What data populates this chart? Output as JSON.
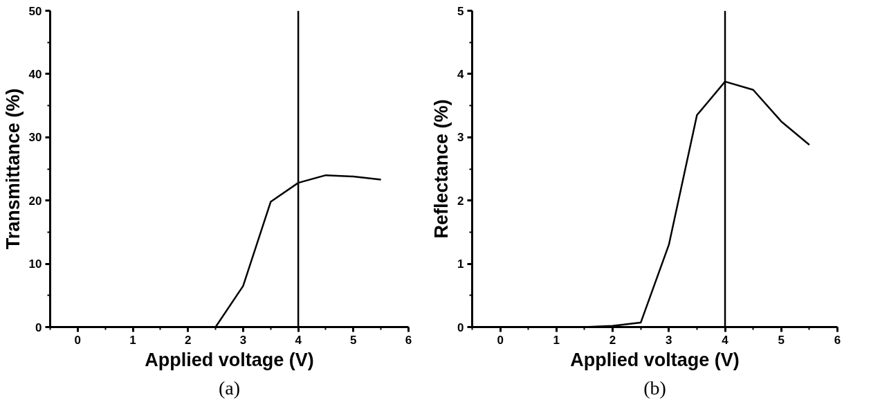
{
  "chart_data": [
    {
      "type": "line",
      "title": "(a)",
      "xlabel": "Applied voltage (V)",
      "ylabel": "Transmittance (%)",
      "x": [
        0,
        0.5,
        1,
        1.5,
        2,
        2.5,
        3,
        3.5,
        4,
        4.5,
        5,
        5.5
      ],
      "series": [
        {
          "color": "#000000",
          "values": [
            0,
            0,
            0,
            0,
            0,
            0,
            6.5,
            19.8,
            22.8,
            24,
            23.8,
            23.3
          ]
        }
      ],
      "xlim": [
        -0.5,
        6
      ],
      "ylim": [
        0,
        50
      ],
      "xticks": [
        0,
        1,
        2,
        3,
        4,
        5,
        6
      ],
      "yticks": [
        0,
        10,
        20,
        30,
        40,
        50
      ],
      "ref_lines": [
        {
          "axis": "x",
          "value": 4,
          "color": "#000000"
        }
      ],
      "grid": false,
      "marker": "none",
      "line_style": "solid"
    },
    {
      "type": "line",
      "title": "(b)",
      "xlabel": "Applied voltage (V)",
      "ylabel": "Reflectance (%)",
      "x": [
        0,
        0.5,
        1,
        1.5,
        2,
        2.5,
        3,
        3.5,
        4,
        4.5,
        5,
        5.5
      ],
      "series": [
        {
          "color": "#000000",
          "values": [
            0,
            0,
            0,
            0,
            0.02,
            0.07,
            1.3,
            3.35,
            3.88,
            3.75,
            3.25,
            2.88
          ]
        }
      ],
      "xlim": [
        -0.5,
        6
      ],
      "ylim": [
        0,
        5
      ],
      "xticks": [
        0,
        1,
        2,
        3,
        4,
        5,
        6
      ],
      "yticks": [
        0,
        1,
        2,
        3,
        4,
        5
      ],
      "ref_lines": [
        {
          "axis": "x",
          "value": 4,
          "color": "#000000"
        }
      ],
      "grid": false,
      "marker": "none",
      "line_style": "solid"
    }
  ]
}
